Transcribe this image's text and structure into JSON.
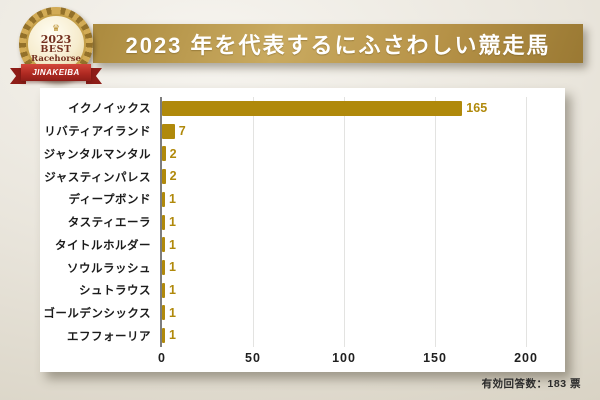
{
  "badge": {
    "year": "2023",
    "title_line1": "BEST",
    "title_line2": "Racehorse",
    "ribbon_text": "JINAKEIBA",
    "crown_icon": "crown"
  },
  "chart_data": {
    "type": "bar",
    "orientation": "horizontal",
    "title": "2023 年を代表するにふさわしい競走馬",
    "categories": [
      "イクノイックス",
      "リバティアイランド",
      "ジャンタルマンタル",
      "ジャスティンパレス",
      "ディープボンド",
      "タスティエーラ",
      "タイトルホルダー",
      "ソウルラッシュ",
      "シュトラウス",
      "ゴールデンシックス",
      "エフフォーリア"
    ],
    "values": [
      165,
      7,
      2,
      2,
      1,
      1,
      1,
      1,
      1,
      1,
      1
    ],
    "xlabel": "",
    "ylabel": "",
    "xlim": [
      0,
      200
    ],
    "xticks": [
      0,
      50,
      100,
      150,
      200
    ],
    "grid": true,
    "legend": false,
    "value_labels": true,
    "bar_color": "#B0890B",
    "value_label_color": "#B0890B",
    "annotations": [
      "有効回答数：183 票"
    ]
  },
  "colors": {
    "background": "#EAE6DD",
    "panel": "#FFFFFF",
    "banner_gold": "#B89449",
    "ribbon_red": "#B02A22",
    "badge_text": "#73301F",
    "axis_line": "#7D7D7D"
  }
}
